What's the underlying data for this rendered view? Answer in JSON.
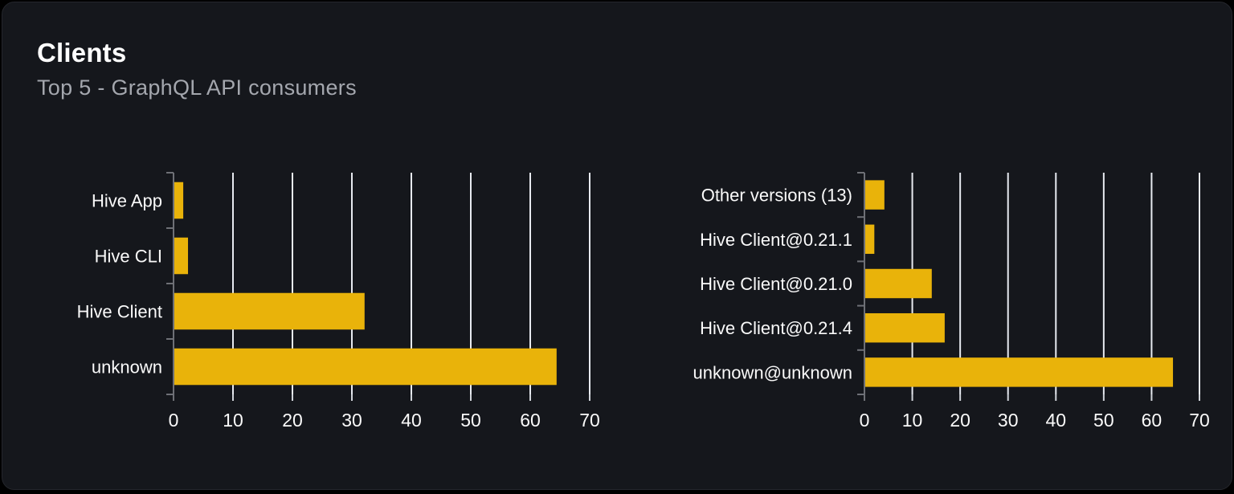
{
  "header": {
    "title": "Clients",
    "subtitle": "Top 5 - GraphQL API consumers"
  },
  "colors": {
    "page_bg": "#000000",
    "card_bg": "#15171c",
    "card_border": "#24262c",
    "title": "#ffffff",
    "subtitle": "#a4a7ae",
    "bar": "#e9b30a",
    "grid": "#e7eaf0",
    "tick": "#d0d4da",
    "axis": "#6e7076",
    "label": "#fafafa"
  },
  "chart_data": [
    {
      "type": "bar",
      "orientation": "horizontal",
      "title": "",
      "xlabel": "",
      "ylabel": "",
      "grid": true,
      "legend": false,
      "xlim": [
        0,
        70
      ],
      "x_ticks": [
        0,
        10,
        20,
        30,
        40,
        50,
        60,
        70
      ],
      "categories": [
        "Hive App",
        "Hive CLI",
        "Hive Client",
        "unknown"
      ],
      "values": [
        1.5,
        2.3,
        32,
        64.3
      ]
    },
    {
      "type": "bar",
      "orientation": "horizontal",
      "title": "",
      "xlabel": "",
      "ylabel": "",
      "grid": true,
      "legend": false,
      "xlim": [
        0,
        70
      ],
      "x_ticks": [
        0,
        10,
        20,
        30,
        40,
        50,
        60,
        70
      ],
      "categories": [
        "Other versions (13)",
        "Hive Client@0.21.1",
        "Hive Client@0.21.0",
        "Hive Client@0.21.4",
        "unknown@unknown"
      ],
      "values": [
        4,
        1.9,
        13.9,
        16.6,
        64.3
      ]
    }
  ]
}
